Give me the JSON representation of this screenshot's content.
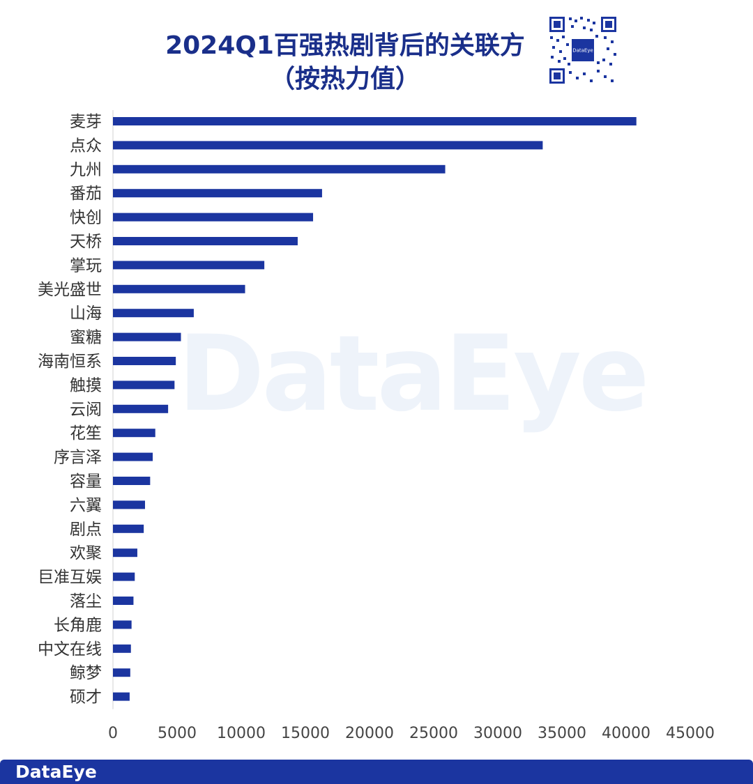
{
  "title_line1": "2024Q1百强热剧背后的关联方",
  "title_line2": "（按热力值）",
  "qr": {
    "center_text": "DataEye"
  },
  "watermark": "DataEye",
  "footer": {
    "logo": "DataEye"
  },
  "chart_data": {
    "type": "bar",
    "orientation": "horizontal",
    "title": "2024Q1百强热剧背后的关联方（按热力值）",
    "categories": [
      "麦芽",
      "点众",
      "九州",
      "番茄",
      "快创",
      "天桥",
      "掌玩",
      "美光盛世",
      "山海",
      "蜜糖",
      "海南恒系",
      "触摸",
      "云阅",
      "花笙",
      "序言泽",
      "容量",
      "六翼",
      "剧点",
      "欢聚",
      "巨准互娱",
      "落尘",
      "长角鹿",
      "中文在线",
      "鲸梦",
      "硕才"
    ],
    "values": [
      40800,
      33500,
      25900,
      16300,
      15600,
      14400,
      11800,
      10300,
      6300,
      5300,
      4900,
      4800,
      4300,
      3300,
      3100,
      2900,
      2500,
      2400,
      1900,
      1700,
      1600,
      1450,
      1400,
      1350,
      1300
    ],
    "xlim": [
      0,
      45000
    ],
    "xticks": [
      "0",
      "5000",
      "10000",
      "15000",
      "20000",
      "25000",
      "30000",
      "35000",
      "40000",
      "45000"
    ],
    "bar_color": "#1b35a0",
    "grid": false
  }
}
